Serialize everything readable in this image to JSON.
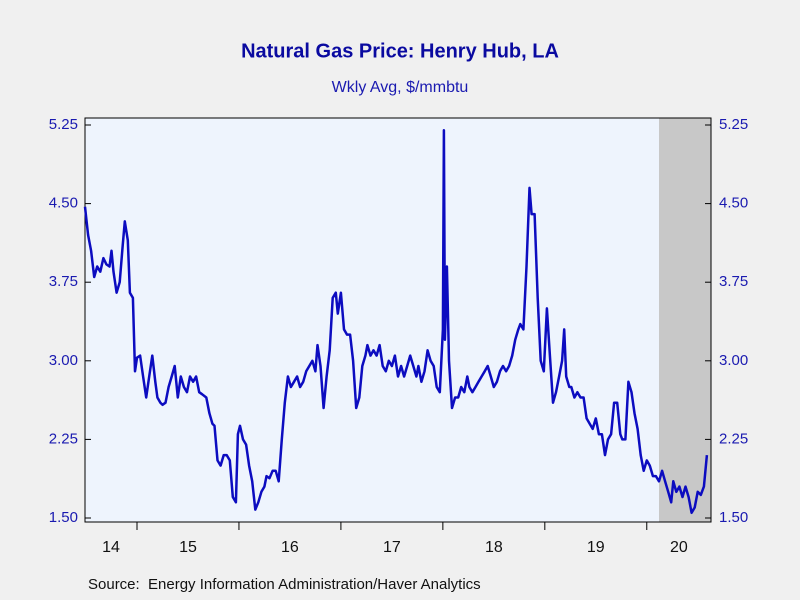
{
  "chart_data": {
    "type": "line",
    "title": "Natural Gas Price: Henry Hub, LA",
    "subtitle": "Wkly Avg, $/mmbtu",
    "source": "Source:  Energy Information Administration/Haver Analytics",
    "color": "#0c0cc0",
    "recession": [
      2020.12,
      2020.63
    ],
    "xlim": [
      2014.49,
      2020.63
    ],
    "xticks": [
      {
        "value": 2014,
        "label": "14"
      },
      {
        "value": 2015,
        "label": "15"
      },
      {
        "value": 2016,
        "label": "16"
      },
      {
        "value": 2017,
        "label": "17"
      },
      {
        "value": 2018,
        "label": "18"
      },
      {
        "value": 2019,
        "label": "19"
      },
      {
        "value": 2020,
        "label": "20"
      }
    ],
    "ylim": [
      1.5,
      5.25
    ],
    "yticks": [
      {
        "value": 1.5,
        "label": "1.50"
      },
      2.25,
      {
        "value": 3,
        "label": "3.00"
      },
      3.75,
      {
        "value": 4.5,
        "label": "4.50"
      },
      5.25
    ],
    "y2lim": [
      1.5,
      5.25
    ],
    "y2ticks": [
      {
        "value": 1.5,
        "label": "1.50"
      },
      2.25,
      {
        "value": 3,
        "label": "3.00"
      },
      3.75,
      {
        "value": 4.5,
        "label": "4.50"
      },
      5.25
    ],
    "x": [
      2014.49,
      2014.52,
      2014.55,
      2014.58,
      2014.61,
      2014.64,
      2014.67,
      2014.7,
      2014.73,
      2014.75,
      2014.77,
      2014.8,
      2014.83,
      2014.86,
      2014.88,
      2014.91,
      2014.93,
      2014.96,
      2014.98,
      2015.0,
      2015.03,
      2015.06,
      2015.09,
      2015.12,
      2015.15,
      2015.18,
      2015.2,
      2015.23,
      2015.25,
      2015.28,
      2015.31,
      2015.34,
      2015.37,
      2015.4,
      2015.43,
      2015.46,
      2015.49,
      2015.52,
      2015.55,
      2015.58,
      2015.61,
      2015.64,
      2015.68,
      2015.71,
      2015.74,
      2015.76,
      2015.79,
      2015.82,
      2015.85,
      2015.88,
      2015.91,
      2015.94,
      2015.97,
      2015.99,
      2016.01,
      2016.04,
      2016.07,
      2016.1,
      2016.13,
      2016.16,
      2016.19,
      2016.22,
      2016.25,
      2016.27,
      2016.3,
      2016.33,
      2016.36,
      2016.39,
      2016.42,
      2016.45,
      2016.48,
      2016.51,
      2016.54,
      2016.57,
      2016.6,
      2016.63,
      2016.66,
      2016.69,
      2016.72,
      2016.75,
      2016.77,
      2016.8,
      2016.83,
      2016.86,
      2016.89,
      2016.92,
      2016.95,
      2016.97,
      2017.0,
      2017.03,
      2017.06,
      2017.09,
      2017.12,
      2017.15,
      2017.18,
      2017.21,
      2017.24,
      2017.26,
      2017.29,
      2017.32,
      2017.35,
      2017.38,
      2017.41,
      2017.44,
      2017.47,
      2017.5,
      2017.53,
      2017.56,
      2017.59,
      2017.62,
      2017.65,
      2017.68,
      2017.71,
      2017.74,
      2017.76,
      2017.79,
      2017.82,
      2017.85,
      2017.88,
      2017.91,
      2017.94,
      2017.97,
      2018.0,
      2018.01,
      2018.02,
      2018.04,
      2018.06,
      2018.09,
      2018.12,
      2018.15,
      2018.18,
      2018.21,
      2018.24,
      2018.26,
      2018.29,
      2018.32,
      2018.35,
      2018.38,
      2018.41,
      2018.44,
      2018.47,
      2018.5,
      2018.53,
      2018.56,
      2018.59,
      2018.62,
      2018.65,
      2018.68,
      2018.71,
      2018.74,
      2018.76,
      2018.79,
      2018.82,
      2018.85,
      2018.87,
      2018.9,
      2018.93,
      2018.96,
      2018.99,
      2019.02,
      2019.05,
      2019.08,
      2019.11,
      2019.14,
      2019.17,
      2019.19,
      2019.21,
      2019.24,
      2019.26,
      2019.29,
      2019.32,
      2019.35,
      2019.38,
      2019.41,
      2019.44,
      2019.47,
      2019.5,
      2019.53,
      2019.56,
      2019.59,
      2019.62,
      2019.65,
      2019.68,
      2019.71,
      2019.74,
      2019.76,
      2019.79,
      2019.82,
      2019.85,
      2019.88,
      2019.91,
      2019.94,
      2019.97,
      2020.0,
      2020.03,
      2020.06,
      2020.09,
      2020.12,
      2020.15,
      2020.18,
      2020.21,
      2020.24,
      2020.26,
      2020.29,
      2020.32,
      2020.35,
      2020.38,
      2020.41,
      2020.44,
      2020.47,
      2020.5,
      2020.53,
      2020.56,
      2020.59
    ],
    "values": [
      4.47,
      4.2,
      4.05,
      3.8,
      3.9,
      3.85,
      3.98,
      3.92,
      3.9,
      4.05,
      3.85,
      3.65,
      3.75,
      4.1,
      4.33,
      4.15,
      3.65,
      3.6,
      2.9,
      3.03,
      3.05,
      2.85,
      2.65,
      2.85,
      3.05,
      2.8,
      2.65,
      2.6,
      2.58,
      2.6,
      2.75,
      2.85,
      2.95,
      2.65,
      2.85,
      2.75,
      2.7,
      2.85,
      2.8,
      2.85,
      2.7,
      2.68,
      2.65,
      2.5,
      2.4,
      2.38,
      2.05,
      2.0,
      2.1,
      2.1,
      2.05,
      1.7,
      1.65,
      2.3,
      2.38,
      2.25,
      2.2,
      2.0,
      1.85,
      1.58,
      1.65,
      1.75,
      1.8,
      1.9,
      1.88,
      1.95,
      1.95,
      1.85,
      2.25,
      2.6,
      2.85,
      2.75,
      2.8,
      2.85,
      2.75,
      2.8,
      2.9,
      2.95,
      3.0,
      2.9,
      3.15,
      2.95,
      2.55,
      2.85,
      3.1,
      3.6,
      3.65,
      3.45,
      3.65,
      3.3,
      3.25,
      3.25,
      3.0,
      2.55,
      2.65,
      2.95,
      3.05,
      3.15,
      3.05,
      3.1,
      3.05,
      3.15,
      2.95,
      2.9,
      3.0,
      2.95,
      3.05,
      2.85,
      2.95,
      2.85,
      2.95,
      3.05,
      2.95,
      2.85,
      2.95,
      2.8,
      2.9,
      3.1,
      3.0,
      2.95,
      2.75,
      2.7,
      3.3,
      5.2,
      3.2,
      3.9,
      3.0,
      2.55,
      2.65,
      2.65,
      2.75,
      2.7,
      2.85,
      2.75,
      2.7,
      2.75,
      2.8,
      2.85,
      2.9,
      2.95,
      2.85,
      2.75,
      2.8,
      2.9,
      2.95,
      2.9,
      2.95,
      3.05,
      3.2,
      3.3,
      3.35,
      3.3,
      3.9,
      4.65,
      4.4,
      4.4,
      3.6,
      3.0,
      2.9,
      3.5,
      3.05,
      2.6,
      2.7,
      2.85,
      3.0,
      3.3,
      2.85,
      2.75,
      2.75,
      2.65,
      2.7,
      2.65,
      2.65,
      2.45,
      2.4,
      2.35,
      2.45,
      2.3,
      2.3,
      2.1,
      2.25,
      2.3,
      2.6,
      2.6,
      2.3,
      2.25,
      2.25,
      2.8,
      2.7,
      2.5,
      2.35,
      2.1,
      1.95,
      2.05,
      2.0,
      1.9,
      1.9,
      1.85,
      1.95,
      1.85,
      1.75,
      1.65,
      1.85,
      1.75,
      1.8,
      1.7,
      1.8,
      1.7,
      1.55,
      1.6,
      1.75,
      1.72,
      1.8,
      2.1
    ]
  }
}
